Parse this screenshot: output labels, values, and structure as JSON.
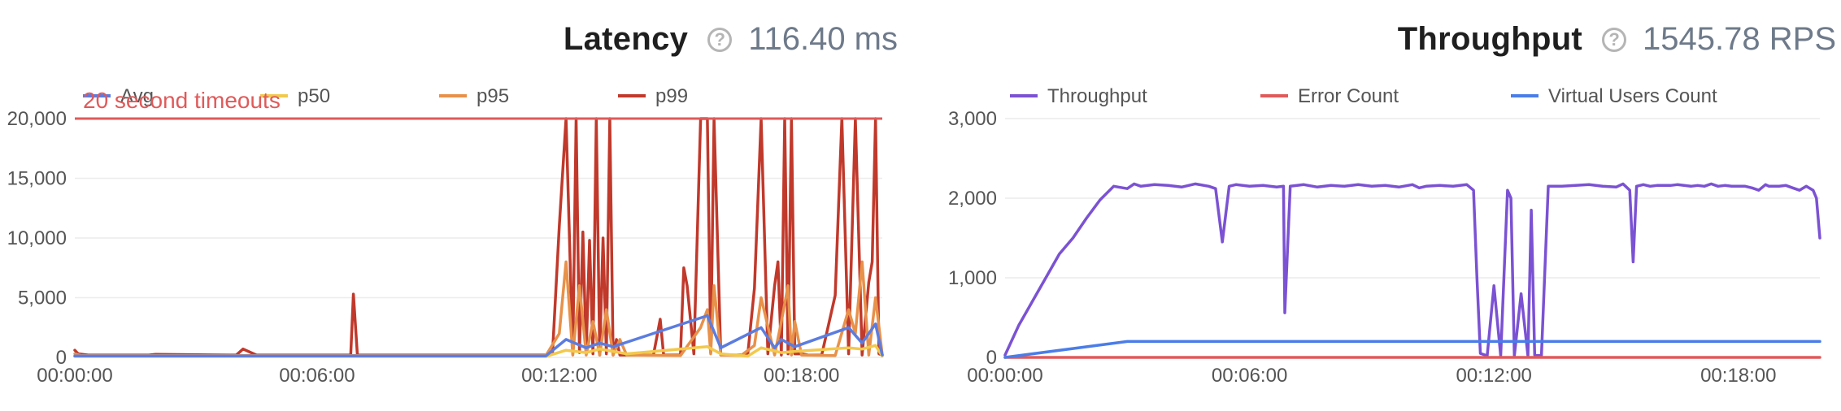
{
  "latency": {
    "title": "Latency",
    "help_icon": "?",
    "value": "116.40 ms",
    "timeout_label": "20 second timeouts"
  },
  "throughput": {
    "title": "Throughput",
    "help_icon": "?",
    "value": "1545.78 RPS"
  },
  "chart_data": [
    {
      "type": "line",
      "legend": [
        "Avg",
        "p50",
        "p95",
        "p99"
      ],
      "yticks": [
        0,
        5000,
        10000,
        15000,
        20000
      ],
      "ytick_labels": [
        "0",
        "5,000",
        "10,000",
        "15,000",
        "20,000"
      ],
      "ylim": [
        0,
        20000
      ],
      "xlim": [
        0,
        1200
      ],
      "xticks": [
        0,
        360,
        720,
        1080
      ],
      "xtick_labels": [
        "00:00:00",
        "00:06:00",
        "00:12:00",
        "00:18:00"
      ],
      "annotation": {
        "text": "20 second timeouts",
        "y": 20000
      },
      "colors": {
        "Avg": "#5b7de0",
        "p50": "#f2c94c",
        "p95": "#e8914a",
        "p99": "#c0392b",
        "timeout": "#e05a5a"
      },
      "series": [
        {
          "name": "p99",
          "x": [
            0,
            5,
            20,
            100,
            110,
            120,
            230,
            240,
            250,
            270,
            290,
            300,
            400,
            410,
            414,
            420,
            520,
            600,
            700,
            710,
            720,
            730,
            740,
            745,
            750,
            755,
            760,
            765,
            770,
            775,
            780,
            785,
            790,
            795,
            800,
            805,
            810,
            815,
            820,
            830,
            860,
            870,
            875,
            880,
            900,
            905,
            910,
            920,
            930,
            940,
            945,
            950,
            960,
            990,
            1000,
            1010,
            1020,
            1030,
            1040,
            1045,
            1050,
            1055,
            1060,
            1065,
            1070,
            1080,
            1090,
            1100,
            1110,
            1130,
            1140,
            1150,
            1160,
            1170,
            1180,
            1185,
            1190,
            1195,
            1200
          ],
          "y": [
            600,
            300,
            200,
            200,
            200,
            250,
            200,
            200,
            700,
            200,
            200,
            200,
            200,
            200,
            5300,
            200,
            200,
            200,
            200,
            400,
            11000,
            20000,
            300,
            20000,
            400,
            10500,
            400,
            9800,
            300,
            20000,
            200,
            10000,
            300,
            20000,
            200,
            1500,
            200,
            200,
            200,
            200,
            200,
            3200,
            200,
            200,
            200,
            7500,
            6000,
            300,
            20000,
            20000,
            400,
            20000,
            200,
            200,
            200,
            5800,
            20000,
            300,
            6000,
            8000,
            200,
            20000,
            300,
            20000,
            300,
            300,
            200,
            200,
            200,
            5200,
            20000,
            300,
            20000,
            200,
            6300,
            8000,
            20000,
            300,
            200
          ],
          "color": "#c0392b"
        },
        {
          "name": "p95",
          "x": [
            0,
            10,
            700,
            720,
            730,
            740,
            750,
            760,
            770,
            780,
            790,
            800,
            810,
            820,
            900,
            930,
            940,
            945,
            950,
            960,
            990,
            1010,
            1020,
            1040,
            1050,
            1060,
            1065,
            1070,
            1080,
            1130,
            1150,
            1160,
            1170,
            1180,
            1190,
            1200
          ],
          "y": [
            300,
            150,
            150,
            2000,
            8000,
            200,
            6000,
            200,
            3000,
            200,
            4000,
            200,
            1500,
            200,
            150,
            2500,
            4000,
            300,
            6000,
            200,
            150,
            1000,
            5000,
            200,
            3000,
            6000,
            200,
            3000,
            200,
            150,
            4000,
            2000,
            8000,
            200,
            5000,
            200
          ],
          "color": "#e8914a"
        },
        {
          "name": "p50",
          "x": [
            0,
            700,
            730,
            760,
            780,
            800,
            820,
            940,
            960,
            1000,
            1020,
            1050,
            1070,
            1150,
            1170,
            1190,
            1200
          ],
          "y": [
            80,
            80,
            600,
            400,
            700,
            500,
            300,
            900,
            300,
            100,
            800,
            400,
            500,
            800,
            700,
            1000,
            100
          ],
          "color": "#f2c94c"
        },
        {
          "name": "Avg",
          "x": [
            0,
            700,
            730,
            760,
            780,
            800,
            940,
            960,
            1020,
            1040,
            1050,
            1070,
            1150,
            1170,
            1190,
            1200
          ],
          "y": [
            120,
            120,
            1500,
            800,
            1200,
            900,
            3500,
            800,
            2500,
            800,
            1500,
            900,
            2500,
            1200,
            2800,
            200
          ],
          "color": "#5b7de0"
        }
      ]
    },
    {
      "type": "line",
      "legend": [
        "Throughput",
        "Error Count",
        "Virtual Users Count"
      ],
      "yticks": [
        0,
        1000,
        2000,
        3000
      ],
      "ytick_labels": [
        "0",
        "1,000",
        "2,000",
        "3,000"
      ],
      "ylim": [
        0,
        3000
      ],
      "xlim": [
        0,
        1200
      ],
      "xticks": [
        0,
        360,
        720,
        1080
      ],
      "xtick_labels": [
        "00:00:00",
        "00:06:00",
        "00:12:00",
        "00:18:00"
      ],
      "colors": {
        "Throughput": "#7b52d3",
        "Error Count": "#e05a5a",
        "Virtual Users Count": "#4a7de8"
      },
      "series": [
        {
          "name": "Throughput",
          "x": [
            0,
            20,
            40,
            60,
            80,
            100,
            120,
            140,
            160,
            180,
            190,
            200,
            220,
            240,
            260,
            280,
            300,
            310,
            320,
            330,
            335,
            340,
            360,
            380,
            400,
            410,
            412,
            420,
            440,
            460,
            480,
            500,
            520,
            540,
            560,
            580,
            600,
            610,
            620,
            640,
            660,
            680,
            690,
            695,
            700,
            710,
            720,
            730,
            740,
            745,
            750,
            760,
            770,
            775,
            780,
            790,
            800,
            820,
            840,
            860,
            880,
            900,
            910,
            920,
            925,
            930,
            940,
            950,
            960,
            970,
            980,
            990,
            1000,
            1010,
            1020,
            1030,
            1040,
            1050,
            1060,
            1070,
            1080,
            1090,
            1100,
            1110,
            1120,
            1125,
            1130,
            1140,
            1150,
            1160,
            1170,
            1180,
            1190,
            1195,
            1200
          ],
          "y": [
            30,
            400,
            700,
            1000,
            1300,
            1500,
            1750,
            1980,
            2150,
            2120,
            2180,
            2150,
            2170,
            2160,
            2140,
            2180,
            2150,
            2120,
            1450,
            2150,
            2160,
            2170,
            2150,
            2160,
            2140,
            2150,
            560,
            2150,
            2170,
            2140,
            2160,
            2150,
            2170,
            2150,
            2160,
            2140,
            2170,
            2130,
            2150,
            2160,
            2150,
            2170,
            2100,
            1000,
            50,
            20,
            900,
            20,
            2100,
            2000,
            20,
            800,
            20,
            1850,
            30,
            20,
            2150,
            2150,
            2160,
            2170,
            2150,
            2140,
            2180,
            2100,
            1200,
            2150,
            2170,
            2150,
            2160,
            2160,
            2160,
            2170,
            2160,
            2150,
            2160,
            2150,
            2180,
            2150,
            2160,
            2150,
            2150,
            2150,
            2130,
            2100,
            2170,
            2150,
            2150,
            2150,
            2160,
            2130,
            2100,
            2150,
            2100,
            2000,
            1500
          ],
          "color": "#7b52d3"
        },
        {
          "name": "Error Count",
          "x": [
            0,
            1200
          ],
          "y": [
            0,
            0
          ],
          "color": "#e05a5a"
        },
        {
          "name": "Virtual Users Count",
          "x": [
            0,
            180,
            1200
          ],
          "y": [
            0,
            200,
            200
          ],
          "color": "#4a7de8"
        }
      ]
    }
  ]
}
